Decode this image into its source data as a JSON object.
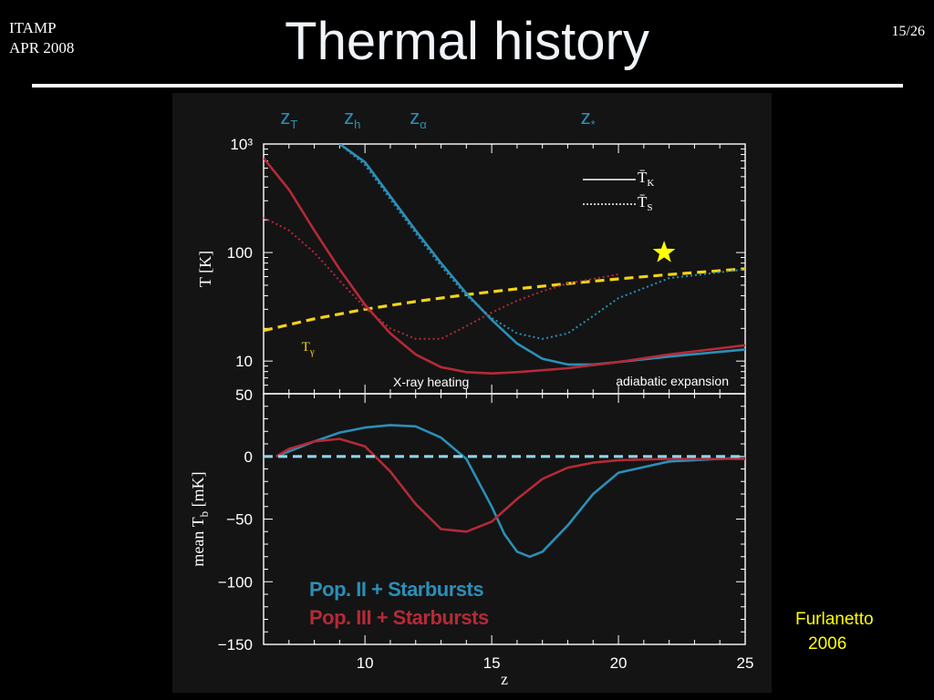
{
  "slide": {
    "conference": "ITAMP",
    "date": "APR 2008",
    "page": "15/26",
    "title": "Thermal history",
    "credit_name": "Furlanetto",
    "credit_year": "2006"
  },
  "colors": {
    "blue": "#2b8fb8",
    "red": "#b52a37",
    "yellow": "#f5d316",
    "cyan": "#8fd3e8"
  },
  "chart_data": [
    {
      "type": "line",
      "panel": "top",
      "ylabel": "T [K]",
      "yscale": "log",
      "ylim": [
        5,
        1000
      ],
      "xlim": [
        6,
        25
      ],
      "yticks": [
        "10",
        "100"
      ],
      "ytop_label": "10³",
      "ybottom_label": "50",
      "top_markers": [
        {
          "label": "z",
          "sub": "T",
          "x": 7.0
        },
        {
          "label": "z",
          "sub": "h",
          "x": 9.5
        },
        {
          "label": "z",
          "sub": "α",
          "x": 12.1
        },
        {
          "label": "z",
          "sub": "*",
          "x": 18.8
        }
      ],
      "legend": [
        {
          "symbol": "T̄",
          "sub": "K",
          "style": "solid"
        },
        {
          "symbol": "T̄",
          "sub": "S",
          "style": "dotted"
        }
      ],
      "annotations": [
        "X-ray heating",
        "adiabatic expansion"
      ],
      "series": [
        {
          "name": "Tγ",
          "style": "dashed",
          "color": "yellow",
          "x": [
            6,
            8,
            10,
            12,
            14,
            16,
            18,
            20,
            22,
            25
          ],
          "y": [
            19.1,
            24.5,
            30.0,
            35.4,
            40.9,
            46.3,
            51.8,
            57.2,
            62.7,
            70.9
          ]
        },
        {
          "style": "solid",
          "color": "blue",
          "x": [
            9.0,
            10,
            11,
            12,
            13,
            14,
            15,
            16,
            17,
            18,
            19,
            20,
            22,
            25
          ],
          "y": [
            1000,
            680,
            330,
            160,
            80,
            42,
            24,
            14.5,
            10.5,
            9.3,
            9.3,
            9.8,
            11.0,
            12.8
          ]
        },
        {
          "style": "dotted",
          "color": "blue",
          "x": [
            9.0,
            10,
            11,
            12,
            13,
            14,
            15,
            16,
            17,
            18,
            19,
            20,
            22,
            25
          ],
          "y": [
            1000,
            640,
            310,
            150,
            75,
            40,
            25,
            18,
            16,
            18,
            26,
            38,
            58,
            70
          ]
        },
        {
          "style": "solid",
          "color": "red",
          "x": [
            6,
            7,
            8,
            9,
            10,
            11,
            12,
            13,
            14,
            15,
            16,
            18,
            20,
            22,
            25
          ],
          "y": [
            740,
            380,
            160,
            70,
            33,
            18,
            11.5,
            8.8,
            7.9,
            7.7,
            7.9,
            8.6,
            9.8,
            11.5,
            14.0
          ]
        },
        {
          "style": "dotted",
          "color": "red",
          "x": [
            6,
            7,
            8,
            9,
            10,
            11,
            12,
            13,
            14,
            15,
            16,
            17,
            18,
            20
          ],
          "y": [
            210,
            160,
            100,
            55,
            31,
            20,
            16,
            16,
            21,
            28,
            36,
            44,
            52,
            63
          ]
        }
      ],
      "star": {
        "x": 21.8,
        "y": 100
      }
    },
    {
      "type": "line",
      "panel": "bottom",
      "xlabel": "z",
      "ylabel": "mean T_b [mK]",
      "xlim": [
        6,
        25
      ],
      "ylim": [
        -150,
        50
      ],
      "xticks": [
        10,
        15,
        20,
        25
      ],
      "yticks": [
        50,
        0,
        -50,
        -100,
        -150
      ],
      "series": [
        {
          "name": "Pop. II + Starbursts",
          "color": "blue",
          "x": [
            6.5,
            7,
            8,
            9,
            10,
            11,
            12,
            13,
            14,
            15,
            15.5,
            16,
            16.5,
            17,
            18,
            19,
            20,
            22,
            25
          ],
          "y": [
            0,
            4,
            12,
            19,
            23,
            25,
            24,
            15,
            -2,
            -40,
            -62,
            -76,
            -80,
            -76,
            -55,
            -30,
            -13,
            -4,
            -1
          ]
        },
        {
          "name": "Pop. III + Starbursts",
          "color": "red",
          "x": [
            6.5,
            7,
            8,
            9,
            10,
            11,
            12,
            13,
            14,
            15,
            16,
            17,
            18,
            19,
            20,
            22,
            25
          ],
          "y": [
            0,
            6,
            12,
            14,
            8,
            -12,
            -38,
            -58,
            -60,
            -52,
            -34,
            -18,
            -9,
            -5,
            -3,
            -2,
            -2
          ]
        },
        {
          "color": "cyan",
          "style": "dashed",
          "x": [
            6,
            25
          ],
          "y": [
            0,
            0
          ]
        }
      ]
    }
  ]
}
